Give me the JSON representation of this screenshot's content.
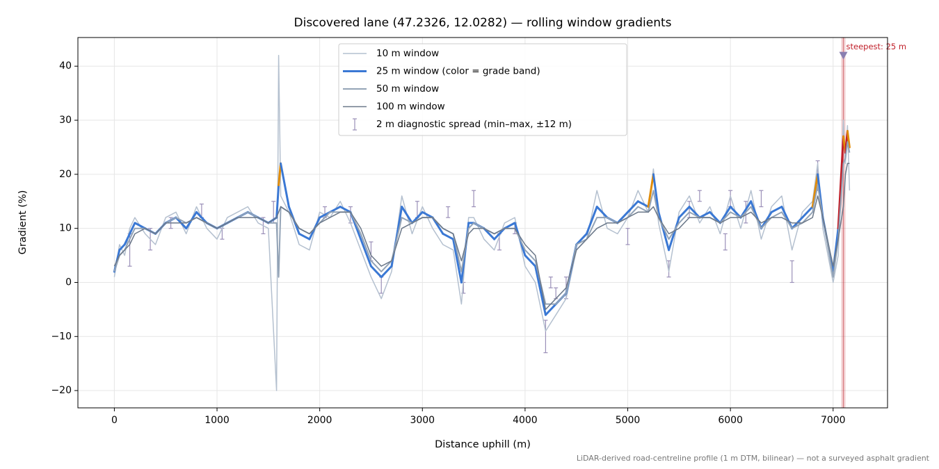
{
  "chart_data": {
    "type": "line",
    "title": "Discovered lane (47.2326, 12.0282) — rolling window gradients",
    "x_label": "Distance uphill (m)",
    "y_label": "Gradient (%)",
    "footnote": "LiDAR-derived road-centreline profile (1 m DTM, bilinear) — not a surveyed asphalt gradient",
    "xlim": [
      -355,
      7530
    ],
    "ylim": [
      -23.2,
      45.3
    ],
    "xticks": [
      0,
      1000,
      2000,
      3000,
      4000,
      5000,
      6000,
      7000
    ],
    "yticks": [
      {
        "value": -20,
        "label": "−20"
      },
      {
        "value": -10,
        "label": "−10"
      },
      0,
      10,
      20,
      30,
      40
    ],
    "grid": true,
    "legend": "upper center",
    "x": [
      0,
      50,
      100,
      150,
      200,
      300,
      400,
      500,
      600,
      700,
      800,
      900,
      1000,
      1100,
      1200,
      1300,
      1400,
      1500,
      1580,
      1600,
      1620,
      1700,
      1800,
      1900,
      2000,
      2100,
      2200,
      2300,
      2400,
      2500,
      2600,
      2700,
      2800,
      2900,
      3000,
      3100,
      3200,
      3300,
      3380,
      3450,
      3500,
      3600,
      3700,
      3800,
      3900,
      4000,
      4100,
      4200,
      4300,
      4400,
      4500,
      4600,
      4700,
      4800,
      4900,
      5000,
      5100,
      5200,
      5250,
      5300,
      5400,
      5500,
      5600,
      5700,
      5800,
      5900,
      6000,
      6100,
      6200,
      6300,
      6400,
      6500,
      6600,
      6700,
      6800,
      6850,
      6900,
      7000,
      7050,
      7100,
      7120,
      7140,
      7160
    ],
    "series": [
      {
        "name": "10 m window",
        "color": "#b4c0cf",
        "width": 1.5,
        "values": [
          1,
          7,
          5,
          10,
          12,
          9,
          7,
          12,
          13,
          9,
          14,
          10,
          8,
          12,
          13,
          14,
          11,
          10,
          -20,
          42,
          16,
          13,
          7,
          6,
          13,
          12,
          15,
          11,
          6,
          1,
          -3,
          2,
          16,
          9,
          14,
          10,
          7,
          6,
          -4,
          12,
          12,
          8,
          6,
          11,
          12,
          3,
          0,
          -9,
          -6,
          -3,
          6,
          8,
          17,
          10,
          9,
          12,
          17,
          13,
          21,
          11,
          2,
          13,
          16,
          11,
          14,
          9,
          16,
          10,
          17,
          8,
          14,
          16,
          6,
          13,
          15,
          22,
          10,
          0,
          5,
          30,
          22,
          29,
          17
        ]
      },
      {
        "name": "25 m window (color = grade band)",
        "color": "#3a78d4",
        "width": 3,
        "values": [
          2,
          6,
          7,
          9,
          11,
          10,
          9,
          11,
          12,
          10,
          13,
          11,
          10,
          11,
          12,
          13,
          12,
          11,
          12,
          18,
          22,
          14,
          9,
          8,
          12,
          13,
          14,
          13,
          8,
          3,
          1,
          3,
          14,
          11,
          13,
          12,
          9,
          8,
          0,
          11,
          11,
          10,
          8,
          10,
          11,
          5,
          3,
          -6,
          -4,
          -2,
          7,
          9,
          14,
          12,
          11,
          13,
          15,
          14,
          20,
          13,
          6,
          12,
          14,
          12,
          13,
          11,
          14,
          12,
          15,
          10,
          13,
          14,
          10,
          12,
          14,
          20,
          12,
          2,
          10,
          27,
          24,
          28,
          25
        ],
        "colors": [
          "#3a78d4",
          "#3a78d4",
          "#3a78d4",
          "#3a78d4",
          "#3a78d4",
          "#3a78d4",
          "#3a78d4",
          "#3a78d4",
          "#3a78d4",
          "#3a78d4",
          "#3a78d4",
          "#3a78d4",
          "#3a78d4",
          "#3a78d4",
          "#3a78d4",
          "#3a78d4",
          "#3a78d4",
          "#3a78d4",
          "#3a78d4",
          "#3a78d4",
          "#e08c0a",
          "#3a78d4",
          "#3a78d4",
          "#3a78d4",
          "#3a78d4",
          "#3a78d4",
          "#3a78d4",
          "#3a78d4",
          "#3a78d4",
          "#3a78d4",
          "#3a78d4",
          "#3a78d4",
          "#3a78d4",
          "#3a78d4",
          "#3a78d4",
          "#3a78d4",
          "#3a78d4",
          "#3a78d4",
          "#3a78d4",
          "#3a78d4",
          "#3a78d4",
          "#3a78d4",
          "#3a78d4",
          "#3a78d4",
          "#3a78d4",
          "#3a78d4",
          "#3a78d4",
          "#3a78d4",
          "#3a78d4",
          "#3a78d4",
          "#3a78d4",
          "#3a78d4",
          "#3a78d4",
          "#3a78d4",
          "#3a78d4",
          "#3a78d4",
          "#3a78d4",
          "#3a78d4",
          "#e08c0a",
          "#3a78d4",
          "#3a78d4",
          "#3a78d4",
          "#3a78d4",
          "#3a78d4",
          "#3a78d4",
          "#3a78d4",
          "#3a78d4",
          "#3a78d4",
          "#3a78d4",
          "#3a78d4",
          "#3a78d4",
          "#3a78d4",
          "#3a78d4",
          "#3a78d4",
          "#3a78d4",
          "#e08c0a",
          "#3a78d4",
          "#3a78d4",
          "#3a78d4",
          "#c0202a",
          "#e08c0a",
          "#c0202a",
          "#e08c0a"
        ]
      },
      {
        "name": "50 m window",
        "color": "#93a3b6",
        "width": 2,
        "values": [
          2,
          5,
          6,
          8,
          10,
          10,
          9,
          11,
          12,
          11,
          12,
          11,
          10,
          11,
          12,
          13,
          12,
          11,
          11,
          1,
          14,
          13,
          10,
          9,
          11,
          13,
          13,
          13,
          9,
          4,
          2,
          4,
          12,
          11,
          12,
          12,
          10,
          9,
          2,
          10,
          11,
          10,
          9,
          10,
          10,
          6,
          4,
          -4,
          -4,
          -2,
          7,
          8,
          12,
          12,
          11,
          12,
          14,
          13,
          17,
          12,
          8,
          11,
          13,
          12,
          12,
          11,
          13,
          12,
          14,
          10,
          12,
          13,
          10,
          11,
          13,
          18,
          12,
          1,
          8,
          22,
          23,
          26,
          24
        ]
      },
      {
        "name": "100 m window",
        "color": "#6b7889",
        "width": 1.5,
        "values": [
          3,
          5,
          6,
          7,
          9,
          10,
          9,
          11,
          11,
          11,
          12,
          11,
          10,
          11,
          12,
          12,
          12,
          11,
          12,
          13,
          14,
          13,
          10,
          9,
          11,
          12,
          13,
          13,
          10,
          5,
          3,
          4,
          10,
          11,
          12,
          12,
          10,
          9,
          4,
          9,
          10,
          10,
          9,
          10,
          10,
          7,
          5,
          -5,
          -3,
          -1,
          6,
          8,
          10,
          11,
          11,
          12,
          13,
          13,
          14,
          12,
          9,
          10,
          12,
          12,
          12,
          11,
          12,
          12,
          13,
          11,
          12,
          12,
          11,
          11,
          12,
          16,
          12,
          3,
          8,
          14,
          20,
          22,
          22
        ]
      }
    ],
    "error_bars": {
      "name": "2 m diagnostic spread (min–max, ±12 m)",
      "color": "#9a8fb8",
      "x": [
        150,
        350,
        550,
        850,
        1050,
        1450,
        1550,
        2050,
        2300,
        2500,
        2600,
        2950,
        3250,
        3400,
        3500,
        3750,
        3900,
        4200,
        4250,
        4300,
        4400,
        5000,
        5400,
        5600,
        5700,
        5950,
        6000,
        6150,
        6300,
        6600,
        6850
      ],
      "low": [
        3,
        6,
        10,
        12,
        8,
        9,
        11,
        12,
        11,
        4,
        -2,
        12,
        12,
        -2,
        14,
        6,
        9,
        -13,
        -1,
        -3,
        -3,
        7,
        1,
        12,
        15,
        6,
        14,
        11,
        14,
        0,
        17
      ],
      "high": [
        9,
        10,
        12,
        14.5,
        10,
        12,
        15,
        14,
        14,
        7.5,
        1,
        15,
        14,
        0,
        17,
        9,
        11,
        -7,
        1,
        -1,
        1,
        10,
        4,
        15,
        17,
        9,
        17,
        15,
        17,
        4,
        22.5
      ]
    },
    "annotation": {
      "text": "steepest: 25 m",
      "x": 7100,
      "y": 42,
      "color": "#c0202a",
      "marker_color": "#8a7fb0"
    }
  }
}
